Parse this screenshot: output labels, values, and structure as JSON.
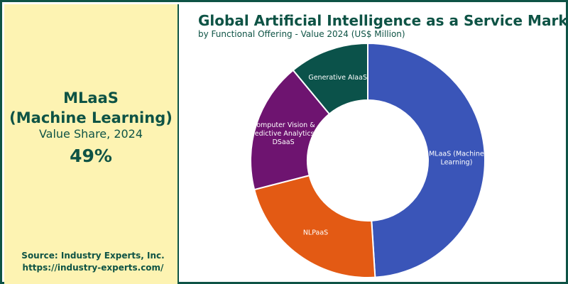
{
  "kpi": {
    "name_line1": "MLaaS",
    "name_line2": "(Machine Learning)",
    "subtitle": "Value Share, 2024",
    "value": "49%"
  },
  "source": {
    "line1": "Source: Industry Experts, Inc.",
    "line2": "https://industry-experts.com/"
  },
  "colors": {
    "brand": "#0e5345",
    "panel_bg": "#fdf3b2"
  },
  "chart_data": {
    "type": "pie",
    "variant": "donut",
    "title": "Global Artificial Intelligence as a Service Market",
    "subtitle": "by Functional Offering - Value 2024 (US$ Million)",
    "unit": "percent share",
    "legend": "none",
    "slices": [
      {
        "label_lines": [
          "MLaaS (Machine",
          "Learning)"
        ],
        "value": 49,
        "color": "#3a55b8",
        "text_color": "#ffffff"
      },
      {
        "label_lines": [
          "NLPaaS"
        ],
        "value": 22,
        "color": "#e35a14",
        "text_color": "#ffffff"
      },
      {
        "label_lines": [
          "Computer Vision &",
          "Predictive Analytics /",
          "DSaaS"
        ],
        "value": 18,
        "color": "#6e1470",
        "text_color": "#ffffff"
      },
      {
        "label_lines": [
          "Generative AIaaS"
        ],
        "value": 11,
        "color": "#0b524a",
        "text_color": "#ffffff"
      }
    ]
  }
}
